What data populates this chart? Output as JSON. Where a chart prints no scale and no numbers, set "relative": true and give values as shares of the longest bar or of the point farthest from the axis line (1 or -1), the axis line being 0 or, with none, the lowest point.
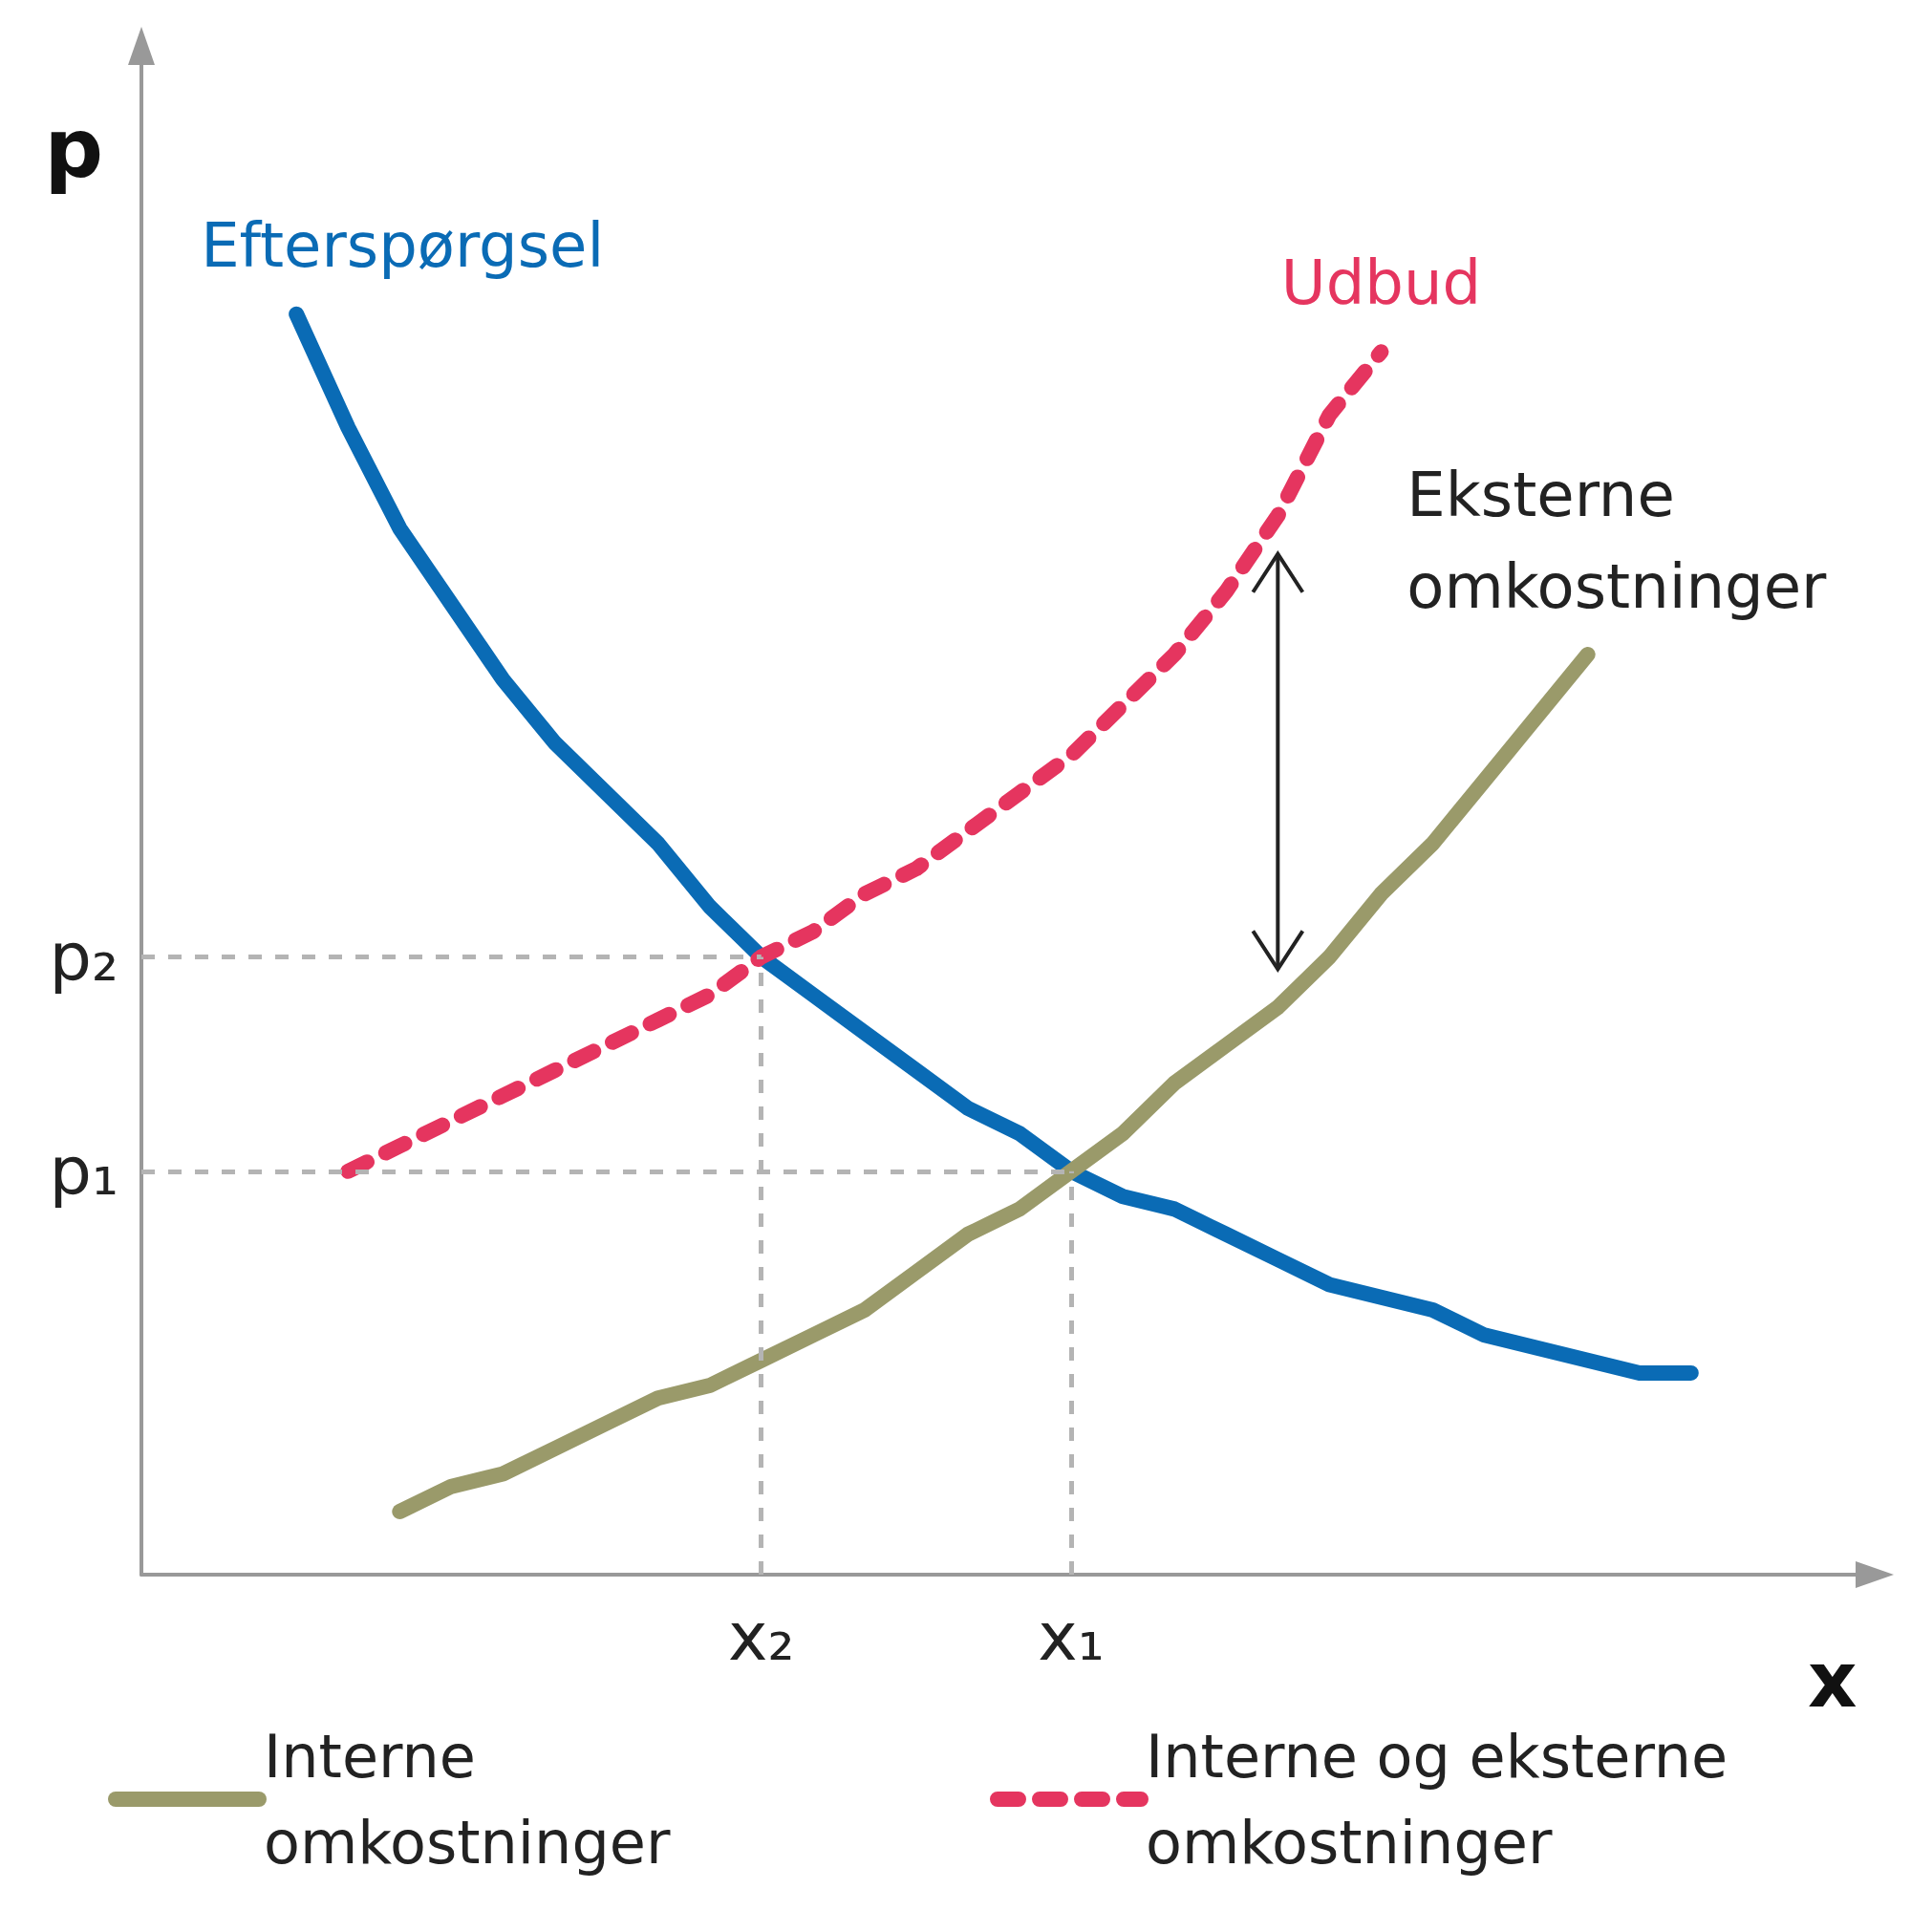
{
  "chart_data": {
    "type": "line",
    "relative": true,
    "xlabel": "x",
    "ylabel": "p",
    "grid": false,
    "legend": "bottom",
    "marker": "none",
    "tick_labels": "x",
    "categories": [
      null,
      null,
      null,
      null,
      null,
      null,
      null,
      null,
      null,
      null,
      null,
      null,
      "x₂",
      null,
      null,
      null,
      null,
      null,
      "x₁",
      null,
      null,
      null,
      null,
      null,
      null,
      null,
      null,
      null,
      null,
      null,
      null,
      null,
      null,
      null
    ],
    "series": [
      {
        "color": "#0a6bb5",
        "line_style": "solid",
        "values": [
          null,
          null,
          null,
          1.0,
          0.91,
          0.83,
          0.77,
          0.71,
          0.66,
          0.62,
          0.58,
          0.53,
          0.49,
          0.46,
          0.43,
          0.4,
          0.37,
          0.35,
          0.32,
          0.3,
          0.29,
          0.27,
          0.25,
          0.23,
          0.22,
          0.21,
          0.19,
          0.18,
          0.17,
          0.16,
          0.16,
          null,
          null,
          null
        ]
      },
      {
        "name": "Interne omkostninger",
        "color": "#9a9a6a",
        "line_style": "solid",
        "values": [
          null,
          null,
          null,
          null,
          null,
          0.05,
          0.07,
          0.08,
          0.1,
          0.12,
          0.14,
          0.15,
          0.17,
          0.19,
          0.21,
          0.24,
          0.27,
          0.29,
          0.32,
          0.35,
          0.39,
          0.42,
          0.45,
          0.49,
          0.54,
          0.58,
          0.63,
          0.68,
          0.73,
          null,
          null,
          null,
          null,
          null
        ]
      },
      {
        "name": "Interne og eksterne omkostninger",
        "color": "#e5355f",
        "line_style": "dashed",
        "values": [
          null,
          null,
          null,
          null,
          0.32,
          0.34,
          0.36,
          0.38,
          0.4,
          0.42,
          0.44,
          0.46,
          0.49,
          0.51,
          0.54,
          0.56,
          0.59,
          0.62,
          0.65,
          0.69,
          0.73,
          0.78,
          0.84,
          0.92,
          0.97,
          null,
          null,
          null,
          null,
          null,
          null,
          null,
          null,
          null
        ]
      }
    ],
    "ref_lines": [
      {
        "axis": "y",
        "value": 0.49,
        "label": "p₂",
        "color": "#b4b4b4",
        "line_style": "dashed"
      },
      {
        "axis": "y",
        "value": 0.32,
        "label": "p₁",
        "color": "#b4b4b4",
        "line_style": "dashed"
      },
      {
        "axis": "x",
        "value": "x₂",
        "color": "#b4b4b4",
        "line_style": "dashed"
      },
      {
        "axis": "x",
        "value": "x₁",
        "color": "#b4b4b4",
        "line_style": "dashed"
      }
    ],
    "annotations": [
      "Efterspørgsel",
      "Udbud",
      "Eksterne omkostninger"
    ]
  }
}
